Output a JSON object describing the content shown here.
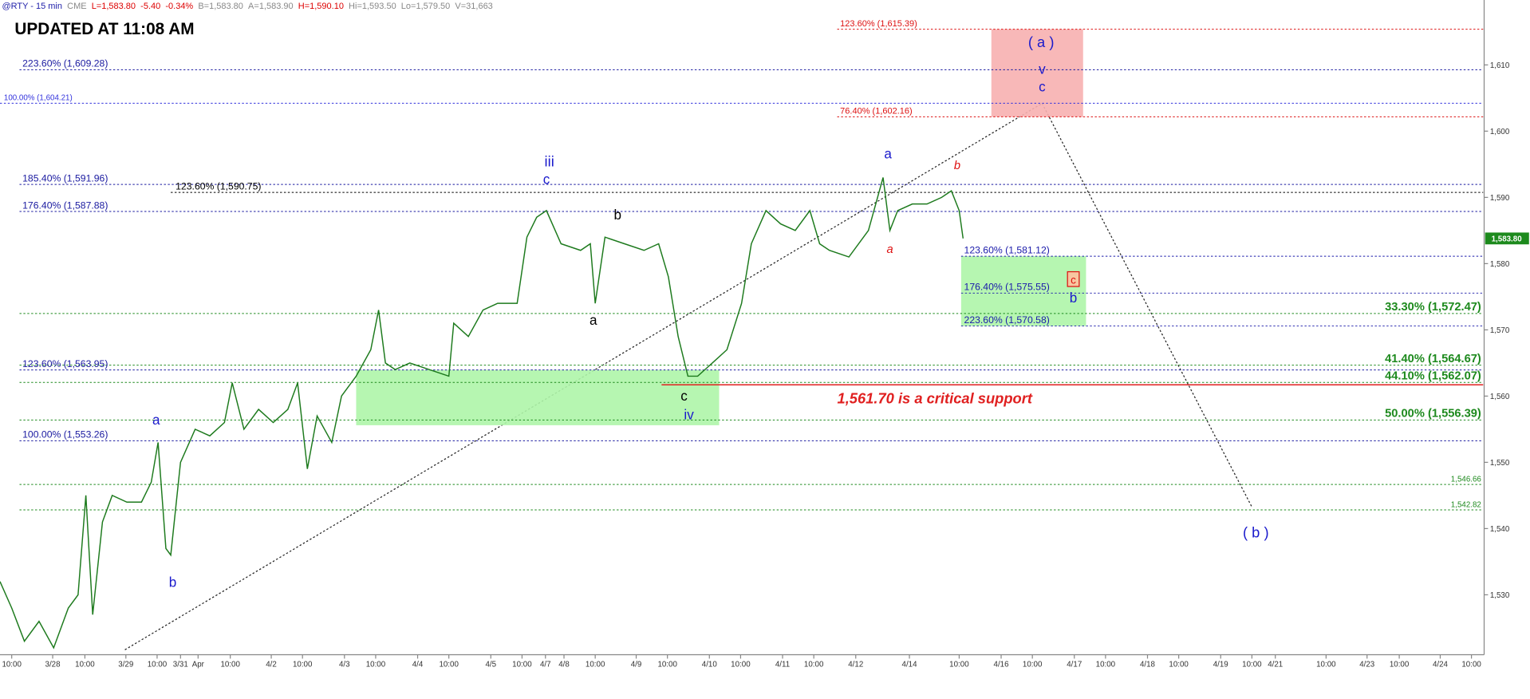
{
  "chart_data": {
    "type": "line",
    "title": "UPDATED AT 11:08 AM",
    "color": "#1d7a1d",
    "x": [
      0,
      12,
      25,
      40,
      55,
      70,
      80,
      88,
      95,
      105,
      115,
      130,
      145,
      155,
      162,
      170,
      175,
      185,
      200,
      215,
      230,
      238,
      250,
      265,
      280,
      295,
      305,
      315,
      325,
      340,
      350,
      365,
      380,
      388,
      395,
      405,
      420,
      440,
      460,
      465,
      480,
      495,
      510,
      530,
      540,
      550,
      560,
      575,
      595,
      605,
      610,
      620,
      640,
      660,
      675,
      685,
      695,
      705,
      715,
      730,
      745,
      760,
      770,
      785,
      800,
      815,
      830,
      840,
      850,
      870,
      890,
      905,
      912,
      920,
      935,
      950,
      965,
      975,
      983,
      987
    ],
    "values": [
      1532,
      1528,
      1523,
      1526,
      1522,
      1528,
      1530,
      1545,
      1527,
      1541,
      1545,
      1544,
      1544,
      1547,
      1553,
      1537,
      1536,
      1550,
      1555,
      1554,
      1556,
      1562,
      1555,
      1558,
      1556,
      1558,
      1562,
      1549,
      1557,
      1553,
      1560,
      1563,
      1567,
      1573,
      1565,
      1564,
      1565,
      1564,
      1563,
      1571,
      1569,
      1573,
      1574,
      1574,
      1584,
      1587,
      1588,
      1583,
      1582,
      1583,
      1574,
      1584,
      1583,
      1582,
      1583,
      1578,
      1569,
      1563,
      1563,
      1565,
      1567,
      1574,
      1583,
      1588,
      1586,
      1585,
      1588,
      1583,
      1582,
      1581,
      1585,
      1593,
      1585,
      1588,
      1589,
      1589,
      1590,
      1591,
      1588,
      1583.8
    ],
    "xlim": [
      0,
      1520
    ],
    "ylim": [
      1521.7,
      1619.8
    ],
    "xticks": [
      {
        "value": 12,
        "label": "10:00"
      },
      {
        "value": 54,
        "label": "3/28"
      },
      {
        "value": 87,
        "label": "10:00"
      },
      {
        "value": 129,
        "label": "3/29"
      },
      {
        "value": 161,
        "label": "10:00"
      },
      {
        "value": 185,
        "label": "3/31"
      },
      {
        "value": 203,
        "label": "Apr"
      },
      {
        "value": 236,
        "label": "10:00"
      },
      {
        "value": 278,
        "label": "4/2"
      },
      {
        "value": 310,
        "label": "10:00"
      },
      {
        "value": 353,
        "label": "4/3"
      },
      {
        "value": 385,
        "label": "10:00"
      },
      {
        "value": 428,
        "label": "4/4"
      },
      {
        "value": 460,
        "label": "10:00"
      },
      {
        "value": 503,
        "label": "4/5"
      },
      {
        "value": 535,
        "label": "10:00"
      },
      {
        "value": 559,
        "label": "4/7"
      },
      {
        "value": 578,
        "label": "4/8"
      },
      {
        "value": 610,
        "label": "10:00"
      },
      {
        "value": 652,
        "label": "4/9"
      },
      {
        "value": 684,
        "label": "10:00"
      },
      {
        "value": 727,
        "label": "4/10"
      },
      {
        "value": 759,
        "label": "10:00"
      },
      {
        "value": 802,
        "label": "4/11"
      },
      {
        "value": 834,
        "label": "10:00"
      },
      {
        "value": 877,
        "label": "4/12"
      },
      {
        "value": 932,
        "label": "4/14"
      },
      {
        "value": 983,
        "label": "10:00"
      },
      {
        "value": 1026,
        "label": "4/16"
      },
      {
        "value": 1058,
        "label": "10:00"
      },
      {
        "value": 1101,
        "label": "4/17"
      },
      {
        "value": 1133,
        "label": "10:00"
      },
      {
        "value": 1176,
        "label": "4/18"
      },
      {
        "value": 1208,
        "label": "10:00"
      },
      {
        "value": 1251,
        "label": "4/19"
      },
      {
        "value": 1283,
        "label": "10:00"
      },
      {
        "value": 1307,
        "label": "4/21"
      },
      {
        "value": 1359,
        "label": "10:00"
      },
      {
        "value": 1401,
        "label": "4/23"
      },
      {
        "value": 1434,
        "label": "10:00"
      },
      {
        "value": 1476,
        "label": "4/24"
      },
      {
        "value": 1508,
        "label": "10:00"
      }
    ],
    "yticks": [
      {
        "value": 1530,
        "label": "1,530"
      },
      {
        "value": 1540,
        "label": "1,540"
      },
      {
        "value": 1550,
        "label": "1,550"
      },
      {
        "value": 1560,
        "label": "1,560"
      },
      {
        "value": 1570,
        "label": "1,570"
      },
      {
        "value": 1580,
        "label": "1,580"
      },
      {
        "value": 1590,
        "label": "1,590"
      },
      {
        "value": 1600,
        "label": "1,600"
      },
      {
        "value": 1610,
        "label": "1,610"
      }
    ],
    "last_price": {
      "value": 1583.8,
      "label": "1,583.80",
      "color": "#1d8a1d"
    }
  },
  "header": {
    "items": [
      {
        "text": "@RTY - 15 min",
        "color": "#2222aa"
      },
      {
        "text": "CME",
        "color": "#888888"
      },
      {
        "text": "L=1,583.80",
        "color": "#dd0000"
      },
      {
        "text": "-5.40",
        "color": "#dd0000"
      },
      {
        "text": "-0.34%",
        "color": "#dd0000"
      },
      {
        "text": "B=1,583.80",
        "color": "#888888"
      },
      {
        "text": "A=1,583.90",
        "color": "#888888"
      },
      {
        "text": "H=1,590.10",
        "color": "#dd0000"
      },
      {
        "text": "Hi=1,593.50",
        "color": "#888888"
      },
      {
        "text": "Lo=1,579.50",
        "color": "#888888"
      },
      {
        "text": "V=31,663",
        "color": "#888888"
      }
    ]
  },
  "levels": [
    {
      "label": "123.60% (1,615.39)",
      "value": 1615.39,
      "color": "#dd1111"
    },
    {
      "label": "223.60% (1,609.28)",
      "value": 1609.28,
      "color": "#1a1aa0"
    },
    {
      "label": "100.00% (1,604.21)",
      "value": 1604.21,
      "color": "#3333dd"
    },
    {
      "label": "76.40% (1,602.16)",
      "value": 1602.16,
      "color": "#dd1111"
    },
    {
      "label": "185.40% (1,591.96)",
      "value": 1591.96,
      "color": "#1a1aa0"
    },
    {
      "label": "123.60% (1,590.75)",
      "value": 1590.75,
      "color": "#000000"
    },
    {
      "label": "176.40% (1,587.88)",
      "value": 1587.88,
      "color": "#1a1aa0"
    },
    {
      "label": "123.60% (1,581.12)",
      "value": 1581.12,
      "color": "#1a1aaa"
    },
    {
      "label": "176.40% (1,575.55)",
      "value": 1575.55,
      "color": "#1a1aaa"
    },
    {
      "label": "33.30% (1,572.47)",
      "value": 1572.47,
      "color": "#1e8a1e"
    },
    {
      "label": "223.60% (1,570.58)",
      "value": 1570.58,
      "color": "#1a1aaa"
    },
    {
      "label": "41.40% (1,564.67)",
      "value": 1564.67,
      "color": "#1e8a1e"
    },
    {
      "label": "123.60% (1,563.95)",
      "value": 1563.95,
      "color": "#1a1aa0"
    },
    {
      "label": "44.10% (1,562.07)",
      "value": 1562.07,
      "color": "#1e8a1e"
    },
    {
      "label": "50.00% (1,556.39)",
      "value": 1556.39,
      "color": "#1e8a1e"
    },
    {
      "label": "100.00% (1,553.26)",
      "value": 1553.26,
      "color": "#1a1aa0"
    },
    {
      "label": "1,546.66",
      "value": 1546.66,
      "color": "#1e8a1e"
    },
    {
      "label": "1,542.82",
      "value": 1542.82,
      "color": "#1e8a1e"
    }
  ],
  "support": {
    "label": "1,561.70 is a critical support",
    "value": 1561.7,
    "color": "#e02020"
  },
  "zones": [
    {
      "range": [
        1602.16,
        1615.39
      ],
      "color": "#f7b0b0"
    },
    {
      "range": [
        1570.58,
        1581.12
      ],
      "color": "#aef5a8"
    },
    {
      "range": [
        1555.6,
        1563.95
      ],
      "color": "#aef5a8"
    }
  ],
  "wave_labels": [
    {
      "text": "a",
      "color": "#1a1acc"
    },
    {
      "text": "b",
      "color": "#1a1acc"
    },
    {
      "text": "iii",
      "color": "#1a1acc"
    },
    {
      "text": "c",
      "color": "#1a1acc"
    },
    {
      "text": "b",
      "color": "#000000"
    },
    {
      "text": "a",
      "color": "#000000"
    },
    {
      "text": "c",
      "color": "#000000"
    },
    {
      "text": "iv",
      "color": "#1a1acc"
    },
    {
      "text": "a",
      "color": "#1a1acc"
    },
    {
      "text": "a",
      "color": "#dd1111"
    },
    {
      "text": "b",
      "color": "#dd1111"
    },
    {
      "text": "( a )",
      "color": "#1a1acc"
    },
    {
      "text": "v",
      "color": "#1a1acc"
    },
    {
      "text": "c",
      "color": "#1a1acc"
    },
    {
      "text": "c",
      "color": "#dd1111"
    },
    {
      "text": "b",
      "color": "#1a1acc"
    },
    {
      "text": "( b )",
      "color": "#1a1acc"
    }
  ]
}
